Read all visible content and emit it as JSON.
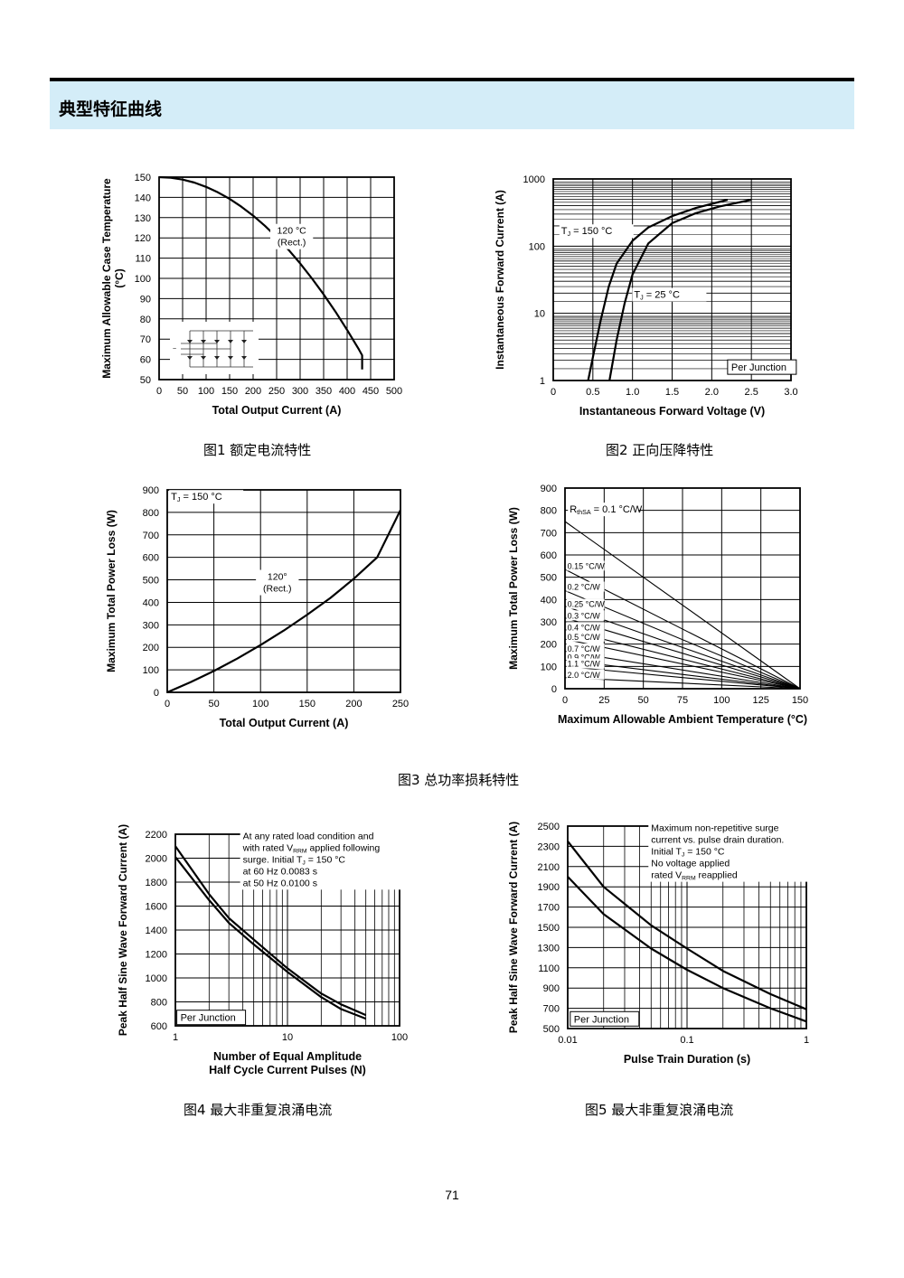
{
  "header": {
    "title": "典型特征曲线"
  },
  "captions": {
    "fig1": "图1  额定电流特性",
    "fig2": "图2  正向压降特性",
    "fig3": "图3  总功率损耗特性",
    "fig4": "图4  最大非重复浪涌电流",
    "fig5": "图5  最大非重复浪涌电流"
  },
  "page_number": "71",
  "chart_data": [
    {
      "id": "fig1",
      "type": "line",
      "xlabel": "Total Output Current (A)",
      "ylabel": [
        "Maximum Allowable Case Temperature",
        "(°C)"
      ],
      "xlim": [
        0,
        500
      ],
      "ylim": [
        50,
        150
      ],
      "grid": true,
      "x_ticks": [
        0,
        50,
        100,
        150,
        200,
        250,
        300,
        350,
        400,
        450,
        500
      ],
      "y_ticks": [
        50,
        60,
        70,
        80,
        90,
        100,
        110,
        120,
        130,
        140,
        150
      ],
      "series": [
        {
          "x": [
            0,
            25,
            50,
            75,
            100,
            125,
            150,
            175,
            200,
            225,
            250,
            275,
            300,
            325,
            350,
            375,
            400,
            425,
            432,
            432
          ],
          "y": [
            150,
            149.7,
            148.8,
            147.3,
            145.2,
            142.5,
            139.3,
            135.4,
            131,
            126,
            120.4,
            114.2,
            107.4,
            100,
            92.1,
            83.6,
            74.5,
            64.9,
            62,
            55
          ]
        }
      ],
      "annotations": [
        {
          "lines": [
            "120 °C",
            "(Rect.)"
          ],
          "x": 282,
          "y": 122
        }
      ]
    },
    {
      "id": "fig2",
      "type": "line",
      "xlabel": "Instantaneous Forward Voltage (V)",
      "ylabel": [
        "Instantaneous Forward Current (A)"
      ],
      "xlim": [
        0,
        3.0
      ],
      "ylim": [
        1,
        1000
      ],
      "yscale": "log",
      "grid": true,
      "x_ticks": [
        0,
        0.5,
        1.0,
        1.5,
        2.0,
        2.5,
        3.0
      ],
      "x_tick_labels": [
        "0",
        "0.5",
        "1.0",
        "1.5",
        "2.0",
        "2.5",
        "3.0"
      ],
      "y_ticks": [
        1,
        10,
        100,
        1000
      ],
      "series": [
        {
          "name": "TJ = 150 °C",
          "x": [
            0.44,
            0.5,
            0.6,
            0.7,
            0.8,
            1.0,
            1.2,
            1.5,
            1.8,
            2.2
          ],
          "y": [
            1,
            2.2,
            8,
            25,
            55,
            120,
            190,
            280,
            370,
            490
          ]
        },
        {
          "name": "TJ = 25 °C",
          "x": [
            0.71,
            0.8,
            0.9,
            1.0,
            1.2,
            1.5,
            1.8,
            2.1,
            2.5
          ],
          "y": [
            1,
            4,
            14,
            38,
            110,
            220,
            310,
            390,
            490
          ]
        }
      ],
      "annotations": [
        {
          "label": "T",
          "sub": "J",
          "rest": " = 150 °C",
          "x": 0.1,
          "y": 150
        },
        {
          "label": "T",
          "sub": "J",
          "rest": " = 25 °C",
          "x": 1.02,
          "y": 17
        },
        {
          "lines": [
            "Per Junction"
          ],
          "x": 2.2,
          "y": 1.4,
          "boxed": true
        }
      ]
    },
    {
      "id": "fig3a",
      "type": "line",
      "xlabel": "Total Output Current (A)",
      "ylabel": [
        "Maximum Total Power Loss (W)"
      ],
      "xlim": [
        0,
        250
      ],
      "ylim": [
        0,
        900
      ],
      "grid": true,
      "x_ticks": [
        0,
        50,
        100,
        150,
        200,
        250
      ],
      "y_ticks": [
        0,
        100,
        200,
        300,
        400,
        500,
        600,
        700,
        800,
        900
      ],
      "series": [
        {
          "x": [
            0,
            25,
            50,
            75,
            100,
            125,
            150,
            175,
            200,
            225,
            250
          ],
          "y": [
            0,
            45,
            95,
            150,
            210,
            275,
            345,
            420,
            505,
            600,
            810
          ]
        }
      ],
      "annotations": [
        {
          "label": "T",
          "sub": "J",
          "rest": " = 150 °C",
          "x": 4,
          "y": 855
        },
        {
          "lines": [
            "120°",
            "(Rect.)"
          ],
          "x": 118,
          "y": 500
        }
      ]
    },
    {
      "id": "fig3b",
      "type": "line",
      "xlabel": "Maximum Allowable Ambient Temperature (°C)",
      "ylabel": [
        "Maximum Total Power Loss (W)"
      ],
      "xlim": [
        0,
        150
      ],
      "ylim": [
        0,
        900
      ],
      "grid": true,
      "x_ticks": [
        0,
        25,
        50,
        75,
        100,
        125,
        150
      ],
      "y_ticks": [
        0,
        100,
        200,
        300,
        400,
        500,
        600,
        700,
        800,
        900
      ],
      "series": [
        {
          "name": "0.1 °C/W",
          "x": [
            0,
            150
          ],
          "y": [
            750,
            0
          ]
        },
        {
          "name": "0.15 °C/W",
          "x": [
            0,
            150
          ],
          "y": [
            535,
            0
          ]
        },
        {
          "name": "0.2 °C/W",
          "x": [
            0,
            150
          ],
          "y": [
            440,
            0
          ]
        },
        {
          "name": "0.25 °C/W",
          "x": [
            0,
            150
          ],
          "y": [
            370,
            0
          ]
        },
        {
          "name": "0.3 °C/W",
          "x": [
            0,
            150
          ],
          "y": [
            318,
            0
          ]
        },
        {
          "name": "0.4 °C/W",
          "x": [
            0,
            150
          ],
          "y": [
            265,
            0
          ]
        },
        {
          "name": "0.5 °C/W",
          "x": [
            0,
            150
          ],
          "y": [
            222,
            0
          ]
        },
        {
          "name": "0.7 °C/W",
          "x": [
            0,
            150
          ],
          "y": [
            168,
            0
          ]
        },
        {
          "name": "0.9 °C/W",
          "x": [
            0,
            150
          ],
          "y": [
            128,
            0
          ]
        },
        {
          "name": "1.1 °C/W",
          "x": [
            0,
            150
          ],
          "y": [
            100,
            0
          ]
        },
        {
          "name": "2.0 °C/W",
          "x": [
            0,
            150
          ],
          "y": [
            50,
            0
          ]
        }
      ],
      "annotations": [
        {
          "label": "R",
          "sub": "thSA",
          "rest": " = 0.1 °C/W",
          "x": 3,
          "y": 790
        }
      ]
    },
    {
      "id": "fig4",
      "type": "line",
      "xlabel": [
        "Number of Equal Amplitude",
        "Half Cycle Current Pulses (N)"
      ],
      "ylabel": [
        "Peak Half Sine Wave Forward Current (A)"
      ],
      "xlim": [
        1,
        100
      ],
      "xscale": "log",
      "ylim": [
        600,
        2200
      ],
      "grid": true,
      "x_ticks": [
        1,
        10,
        100
      ],
      "y_ticks": [
        600,
        800,
        1000,
        1200,
        1400,
        1600,
        1800,
        2000,
        2200
      ],
      "series": [
        {
          "name": "at 60 Hz",
          "x": [
            1,
            2,
            3,
            5,
            10,
            20,
            30,
            50
          ],
          "y": [
            2100,
            1700,
            1500,
            1320,
            1080,
            870,
            780,
            690
          ]
        },
        {
          "name": "at 50 Hz",
          "x": [
            1,
            2,
            3,
            5,
            10,
            20,
            30,
            50
          ],
          "y": [
            2010,
            1650,
            1460,
            1280,
            1050,
            840,
            740,
            660
          ]
        }
      ],
      "annotations": [
        {
          "lines": [
            "At any rated load condition and",
            "with rated V|RRM| applied following",
            "surge. Initial T|J| = 150 °C",
            "at 60 Hz 0.0083 s",
            "at 50 Hz 0.0100 s"
          ],
          "x": 4.0,
          "y": 2160
        },
        {
          "lines": [
            "Per Junction"
          ],
          "x": 1.03,
          "y": 640,
          "boxed": true
        }
      ]
    },
    {
      "id": "fig5",
      "type": "line",
      "xlabel": "Pulse Train Duration (s)",
      "ylabel": [
        "Peak Half Sine Wave Forward Current (A)"
      ],
      "xlim": [
        0.01,
        1
      ],
      "xscale": "log",
      "ylim": [
        500,
        2500
      ],
      "grid": true,
      "x_ticks": [
        0.01,
        0.1,
        1
      ],
      "y_ticks": [
        500,
        700,
        900,
        1100,
        1300,
        1500,
        1700,
        1900,
        2100,
        2300,
        2500
      ],
      "series": [
        {
          "name": "upper",
          "x": [
            0.01,
            0.02,
            0.05,
            0.1,
            0.2,
            0.5,
            1
          ],
          "y": [
            2350,
            1900,
            1520,
            1290,
            1070,
            840,
            690
          ]
        },
        {
          "name": "lower",
          "x": [
            0.01,
            0.02,
            0.05,
            0.1,
            0.2,
            0.5,
            1
          ],
          "y": [
            2000,
            1630,
            1290,
            1080,
            900,
            700,
            570
          ]
        }
      ],
      "annotations": [
        {
          "lines": [
            "Maximum non-repetitive surge",
            "current vs. pulse drain duration.",
            "Initial T|J| = 150 °C",
            "No voltage applied",
            "rated V|RRM| reapplied"
          ],
          "x": 0.05,
          "y": 2450
        },
        {
          "lines": [
            "Per Junction"
          ],
          "x": 0.0105,
          "y": 560,
          "boxed": true
        }
      ]
    }
  ]
}
